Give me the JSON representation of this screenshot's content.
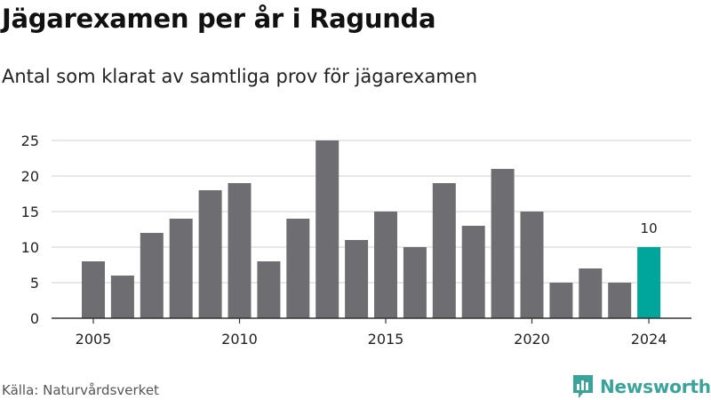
{
  "header": {
    "title": "Jägarexamen per år i Ragunda",
    "subtitle": "Antal som klarat av samtliga prov för jägarexamen"
  },
  "footer": {
    "source": "Källa: Naturvårdsverket",
    "brand": "Newsworthy"
  },
  "colors": {
    "bar": "#6e6d72",
    "highlight": "#00a69c",
    "grid": "#d9d9d9",
    "axis": "#333333",
    "brand": "#3aa39a"
  },
  "chart_data": {
    "type": "bar",
    "title": "Jägarexamen per år i Ragunda",
    "subtitle": "Antal som klarat av samtliga prov för jägarexamen",
    "xlabel": "",
    "ylabel": "",
    "categories": [
      2005,
      2006,
      2007,
      2008,
      2009,
      2010,
      2011,
      2012,
      2013,
      2014,
      2015,
      2016,
      2017,
      2018,
      2019,
      2020,
      2021,
      2022,
      2023,
      2024
    ],
    "values": [
      8,
      6,
      12,
      14,
      18,
      19,
      8,
      14,
      25,
      11,
      15,
      10,
      19,
      13,
      21,
      15,
      5,
      7,
      5,
      10
    ],
    "highlight_category": 2024,
    "highlight_label": "10",
    "ylim": [
      0,
      25
    ],
    "yticks": [
      "0",
      "5",
      "10",
      "15",
      "20",
      "25"
    ],
    "xticks": [
      "2005",
      "2010",
      "2015",
      "2020",
      "2024"
    ],
    "grid": true,
    "legend": "none"
  }
}
